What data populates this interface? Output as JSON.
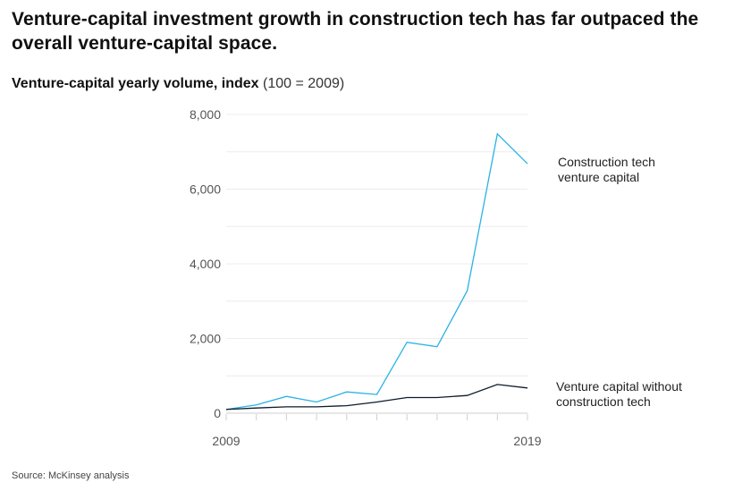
{
  "title": "Venture-capital investment growth in construction tech has far outpaced the overall venture-capital space.",
  "subtitle_bold": "Venture-capital yearly volume, index",
  "subtitle_note": "(100 = 2009)",
  "source": "Source: McKinsey analysis",
  "colors": {
    "construction": "#29b2e6",
    "overall": "#0b1c2c",
    "grid": "#ececec"
  },
  "chart_data": {
    "type": "line",
    "title": "Venture-capital yearly volume, index (100 = 2009)",
    "xlabel": "",
    "ylabel": "",
    "x": [
      2009,
      2010,
      2011,
      2012,
      2013,
      2014,
      2015,
      2016,
      2017,
      2018,
      2019
    ],
    "x_tick_labels": [
      "2009",
      "2019"
    ],
    "ylim": [
      0,
      8000
    ],
    "y_ticks": [
      0,
      2000,
      4000,
      6000,
      8000
    ],
    "y_tick_labels": [
      "0",
      "2,000",
      "4,000",
      "6,000",
      "8,000"
    ],
    "grid": true,
    "legend": "direct labels at right",
    "series": [
      {
        "name": "Construction tech venture capital",
        "color": "#29b2e6",
        "values": [
          100,
          220,
          450,
          300,
          570,
          500,
          1900,
          1780,
          3280,
          7480,
          6680
        ]
      },
      {
        "name": "Venture capital without construction tech",
        "color": "#0b1c2c",
        "values": [
          100,
          140,
          170,
          170,
          200,
          300,
          420,
          420,
          475,
          770,
          675
        ]
      }
    ]
  }
}
